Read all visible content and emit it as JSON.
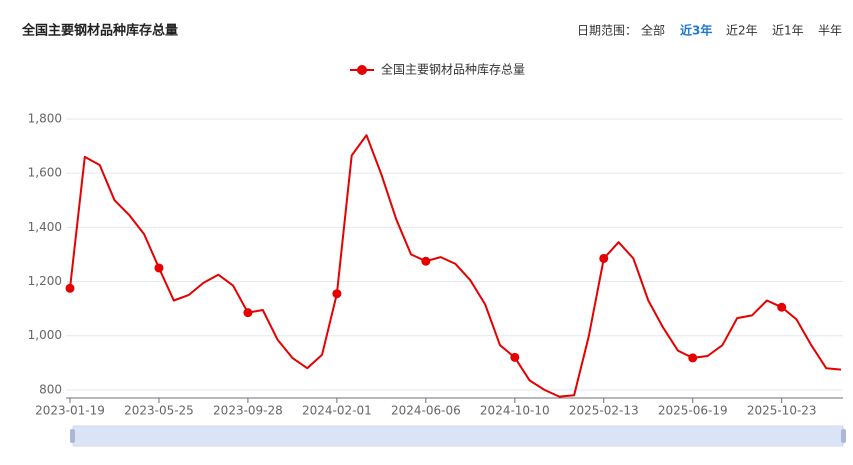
{
  "range_selector": {
    "label": "日期范围：",
    "options": [
      "全部",
      "近3年",
      "近2年",
      "近1年",
      "半年"
    ],
    "active": 1
  },
  "chart_data": {
    "type": "line",
    "title": "全国主要钢材品种库存总量",
    "categories": [
      "2023-01-19",
      null,
      null,
      null,
      null,
      null,
      "2023-05-25",
      null,
      null,
      null,
      null,
      null,
      "2023-09-28",
      null,
      null,
      null,
      null,
      null,
      "2024-02-01",
      null,
      null,
      null,
      null,
      null,
      "2024-06-06",
      null,
      null,
      null,
      null,
      null,
      "2024-10-10",
      null,
      null,
      null,
      null,
      null,
      "2025-02-13",
      null,
      null,
      null,
      null,
      null,
      "2025-06-19",
      null,
      null,
      null,
      null,
      null,
      "2025-10-23",
      null,
      null,
      null,
      null
    ],
    "series": [
      {
        "name": "全国主要钢材品种库存总量",
        "color": "#e60000",
        "values": [
          1175,
          1660,
          1630,
          1500,
          1445,
          1375,
          1250,
          1130,
          1150,
          1195,
          1225,
          1185,
          1085,
          1095,
          985,
          918,
          880,
          930,
          1155,
          1665,
          1740,
          1595,
          1430,
          1300,
          1275,
          1290,
          1265,
          1205,
          1115,
          965,
          920,
          835,
          800,
          775,
          780,
          1000,
          1285,
          1345,
          1285,
          1130,
          1030,
          945,
          918,
          925,
          965,
          1065,
          1075,
          1130,
          1105,
          1060,
          965,
          880,
          875
        ]
      }
    ],
    "ylim": [
      770,
      1870
    ],
    "yticks": [
      800,
      {
        "value": 1000,
        "label": "1,000"
      },
      {
        "value": 1200,
        "label": "1,200"
      },
      {
        "value": 1400,
        "label": "1,400"
      },
      {
        "value": 1600,
        "label": "1,600"
      },
      {
        "value": 1800,
        "label": "1,800"
      }
    ],
    "grid": true
  }
}
